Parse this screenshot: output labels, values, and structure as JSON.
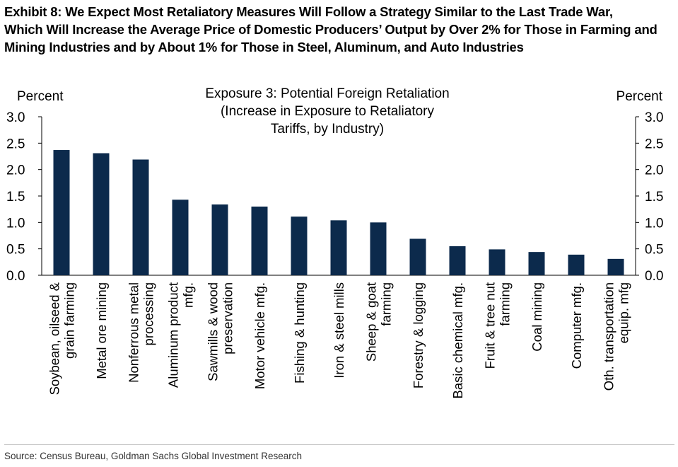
{
  "exhibit": {
    "title_lines": [
      "Exhibit 8: We Expect Most Retaliatory Measures Will Follow a Strategy Similar to the Last Trade War,",
      "Which Will Increase the Average Price of Domestic Producers’ Output by Over 2% for Those in Farming and",
      "Mining Industries and by About 1% for Those in Steel, Aluminum, and Auto Industries"
    ],
    "source": "Source: Census Bureau, Goldman Sachs Global Investment Research"
  },
  "colors": {
    "bar": "#0c2a4c",
    "axis": "#000000"
  },
  "chart_data": {
    "type": "bar",
    "title_lines": [
      "Exposure 3: Potential Foreign Retaliation",
      "(Increase in Exposure to Retaliatory",
      "Tariffs, by Industry)"
    ],
    "ylabel_left": "Percent",
    "ylabel_right": "Percent",
    "ylim": [
      0,
      3.0
    ],
    "yticks": [
      "0.0",
      "0.5",
      "1.0",
      "1.5",
      "2.0",
      "2.5",
      "3.0"
    ],
    "grid": false,
    "categories": [
      [
        "Soybean, oilseed &",
        "grain farming"
      ],
      [
        "Metal ore mining"
      ],
      [
        "Nonferrous metal",
        "processing"
      ],
      [
        "Aluminum product",
        "mfg."
      ],
      [
        "Sawmills & wood",
        "preservation"
      ],
      [
        "Motor vehicle mfg."
      ],
      [
        "Fishing & hunting"
      ],
      [
        "Iron & steel mills"
      ],
      [
        "Sheep & goat",
        "farming"
      ],
      [
        "Forestry & logging"
      ],
      [
        "Basic chemical mfg."
      ],
      [
        "Fruit & tree nut",
        "farming"
      ],
      [
        "Coal mining"
      ],
      [
        "Computer mfg."
      ],
      [
        "Oth. transportation",
        "equip. mfg"
      ]
    ],
    "values": [
      2.37,
      2.31,
      2.19,
      1.43,
      1.34,
      1.3,
      1.11,
      1.04,
      1.0,
      0.69,
      0.55,
      0.49,
      0.44,
      0.39,
      0.31
    ]
  }
}
